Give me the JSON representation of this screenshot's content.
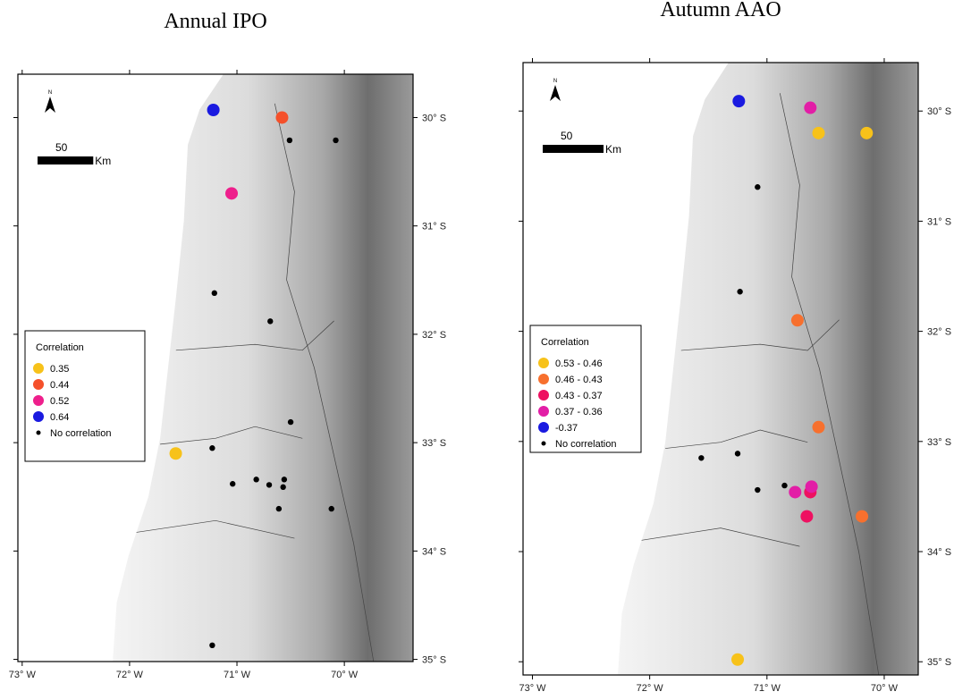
{
  "chart_data": [
    {
      "type": "scatter",
      "title": "Annual IPO",
      "xlim": [
        -73.04,
        -69.36
      ],
      "ylim": [
        -35.02,
        -29.6
      ],
      "xticks": [
        {
          "value": -73,
          "label": "73° W"
        },
        {
          "value": -72,
          "label": "72° W"
        },
        {
          "value": -71,
          "label": "71° W"
        },
        {
          "value": -70,
          "label": "70° W"
        }
      ],
      "yticks": [
        {
          "value": -30,
          "label": "30° S"
        },
        {
          "value": -31,
          "label": "31° S"
        },
        {
          "value": -32,
          "label": "32° S"
        },
        {
          "value": -33,
          "label": "33° S"
        },
        {
          "value": -34,
          "label": "34° S"
        },
        {
          "value": -35,
          "label": "35° S"
        }
      ],
      "north": "N",
      "scale_bar": 50,
      "scale_unit": "Km",
      "legend_title": "Correlation",
      "series": [
        {
          "name": "0.35",
          "color": "#f7c21a",
          "x": [
            -71.57
          ],
          "y": [
            -33.1
          ]
        },
        {
          "name": "0.44",
          "color": "#f5502a",
          "x": [
            -70.58
          ],
          "y": [
            -30.0
          ]
        },
        {
          "name": "0.52",
          "color": "#ee1f8c",
          "x": [
            -71.05
          ],
          "y": [
            -30.7
          ]
        },
        {
          "name": "0.64",
          "color": "#1a1ae0",
          "x": [
            -71.22
          ],
          "y": [
            -29.93
          ]
        },
        {
          "name": "No correlation",
          "color": "#000000",
          "size": "small",
          "x": [
            -70.51,
            -70.08,
            -71.21,
            -70.69,
            -70.5,
            -71.23,
            -71.04,
            -70.82,
            -70.7,
            -70.56,
            -70.57,
            -70.61,
            -70.12,
            -71.23
          ],
          "y": [
            -30.21,
            -30.21,
            -31.62,
            -31.88,
            -32.81,
            -33.05,
            -33.38,
            -33.34,
            -33.39,
            -33.34,
            -33.41,
            -33.61,
            -33.61,
            -34.87
          ]
        }
      ]
    },
    {
      "type": "scatter",
      "title": "Autumn AAO",
      "xlim": [
        -73.08,
        -69.71
      ],
      "ylim": [
        -35.12,
        -29.56
      ],
      "xticks": [
        {
          "value": -73,
          "label": "73° W"
        },
        {
          "value": -72,
          "label": "72° W"
        },
        {
          "value": -71,
          "label": "71° W"
        },
        {
          "value": -70,
          "label": "70° W"
        }
      ],
      "yticks": [
        {
          "value": -30,
          "label": "30° S"
        },
        {
          "value": -31,
          "label": "31° S"
        },
        {
          "value": -32,
          "label": "32° S"
        },
        {
          "value": -33,
          "label": "33° S"
        },
        {
          "value": -34,
          "label": "34° S"
        },
        {
          "value": -35,
          "label": "35° S"
        }
      ],
      "north": "N",
      "scale_bar": 50,
      "scale_unit": "Km",
      "legend_title": "Correlation",
      "series": [
        {
          "name": "0.53 - 0.46",
          "color": "#f7c21a",
          "x": [
            -70.56,
            -70.15,
            -71.25
          ],
          "y": [
            -30.2,
            -30.2,
            -34.98
          ]
        },
        {
          "name": "0.46 - 0.43",
          "color": "#f7702e",
          "x": [
            -70.74,
            -70.56,
            -70.19
          ],
          "y": [
            -31.9,
            -32.87,
            -33.68
          ]
        },
        {
          "name": "0.43 - 0.37",
          "color": "#ee1161",
          "x": [
            -70.63,
            -70.66
          ],
          "y": [
            -33.46,
            -33.68
          ]
        },
        {
          "name": "0.37 - 0.36",
          "color": "#e21ea6",
          "x": [
            -70.63,
            -70.76,
            -70.62
          ],
          "y": [
            -29.97,
            -33.46,
            -33.41
          ]
        },
        {
          "name": "-0.37",
          "color": "#1a1ae0",
          "x": [
            -71.24
          ],
          "y": [
            -29.91
          ]
        },
        {
          "name": "No correlation",
          "color": "#000000",
          "size": "small",
          "x": [
            -71.08,
            -71.23,
            -71.56,
            -71.25,
            -71.08,
            -70.85
          ],
          "y": [
            -30.69,
            -31.64,
            -33.15,
            -33.11,
            -33.44,
            -33.4
          ]
        }
      ]
    }
  ]
}
